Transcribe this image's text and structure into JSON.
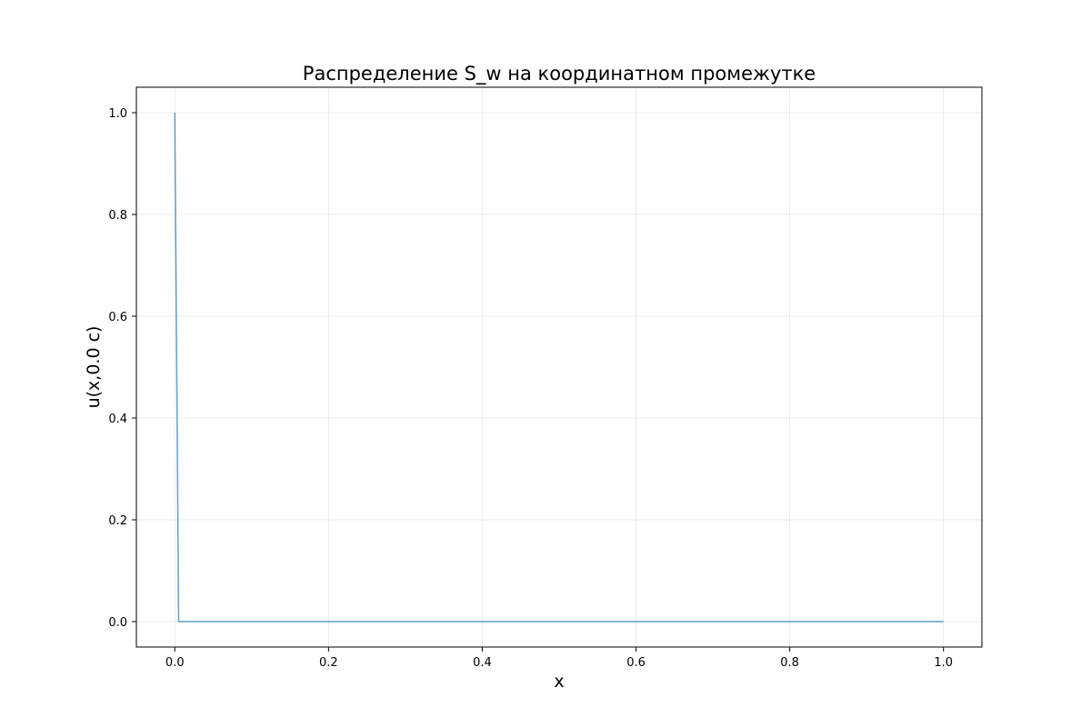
{
  "chart_data": {
    "type": "line",
    "title": "Распределение S_w на координатном промежутке",
    "xlabel": "x",
    "ylabel": "u(x,0.0 с)",
    "xlim": [
      -0.05,
      1.05
    ],
    "ylim": [
      -0.05,
      1.05
    ],
    "xticks": [
      0.0,
      0.2,
      0.4,
      0.6,
      0.8,
      1.0
    ],
    "xtick_labels": [
      "0.0",
      "0.2",
      "0.4",
      "0.6",
      "0.8",
      "1.0"
    ],
    "yticks": [
      0.0,
      0.2,
      0.4,
      0.6,
      0.8,
      1.0
    ],
    "ytick_labels": [
      "0.0",
      "0.2",
      "0.4",
      "0.6",
      "0.8",
      "1.0"
    ],
    "grid": true,
    "legend": "none",
    "series": [
      {
        "color": "#1f77b4",
        "x": [
          0.0,
          0.005,
          1.0
        ],
        "y": [
          1.0,
          0.0,
          0.0
        ]
      }
    ]
  }
}
